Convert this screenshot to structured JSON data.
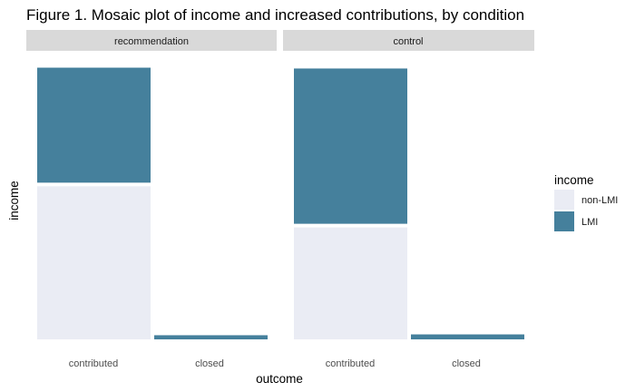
{
  "chart_data": {
    "type": "mosaic",
    "title": "Figure 1. Mosaic plot of income and increased contributions, by condition",
    "xlabel": "outcome",
    "ylabel": "income",
    "categories": [
      "contributed",
      "closed"
    ],
    "legend": {
      "title": "income",
      "position": "right",
      "items": [
        {
          "label": "non-LMI",
          "color": "#EAECF4"
        },
        {
          "label": "LMI",
          "color": "#45809C"
        }
      ]
    },
    "panels": [
      {
        "label": "recommendation",
        "cells": [
          {
            "outcome": "contributed",
            "width_share": 0.985,
            "lmi_share": 0.43
          },
          {
            "outcome": "closed",
            "width_share": 0.015,
            "lmi_share": 1.0
          }
        ]
      },
      {
        "label": "control",
        "cells": [
          {
            "outcome": "contributed",
            "width_share": 0.982,
            "lmi_share": 0.58
          },
          {
            "outcome": "closed",
            "width_share": 0.018,
            "lmi_share": 1.0
          }
        ]
      }
    ],
    "grid": false
  }
}
